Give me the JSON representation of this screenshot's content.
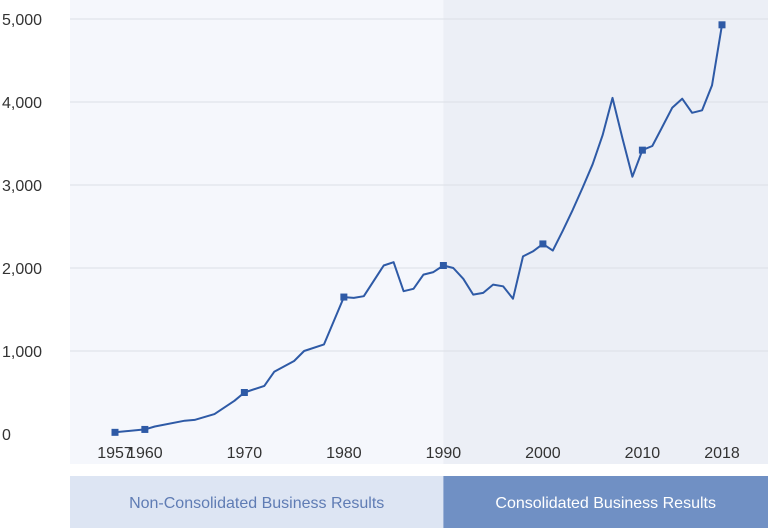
{
  "chart_data": {
    "type": "line",
    "title": "",
    "xlabel": "",
    "ylabel": "",
    "ylim": [
      0,
      5000
    ],
    "xlim": [
      1954,
      2021
    ],
    "grid": "horizontal",
    "yticks": [
      0,
      1000,
      2000,
      3000,
      4000,
      5000
    ],
    "ytick_labels": [
      "0",
      "1,000",
      "2,000",
      "3,000",
      "4,000",
      "5,000"
    ],
    "xticks": [
      1957,
      1960,
      1970,
      1980,
      1990,
      2000,
      2010,
      2018
    ],
    "xtick_labels": [
      "1957",
      "1960",
      "1970",
      "1980",
      "1990",
      "2000",
      "2010",
      "2018"
    ],
    "line_color": "#2e5aa6",
    "regions": [
      {
        "label": "Non-Consolidated Business Results",
        "x_range": [
          1954,
          1990
        ],
        "plot_color": "#f5f7fc",
        "band_color": "#dde5f3",
        "text_color": "#5f7cb4"
      },
      {
        "label": "Consolidated Business Results",
        "x_range": [
          1990,
          2021
        ],
        "plot_color": "#eceff6",
        "band_color": "#7090c4",
        "text_color": "#ffffff"
      }
    ],
    "series": [
      {
        "name": "",
        "x": [
          1957,
          1960,
          1961,
          1964,
          1965,
          1967,
          1969,
          1970,
          1972,
          1973,
          1975,
          1976,
          1978,
          1980,
          1981,
          1982,
          1984,
          1985,
          1986,
          1987,
          1988,
          1989,
          1990,
          1991,
          1992,
          1993,
          1994,
          1995,
          1996,
          1997,
          1998,
          1999,
          2000,
          2001,
          2002,
          2003,
          2004,
          2005,
          2006,
          2007,
          2008,
          2009,
          2010,
          2011,
          2012,
          2013,
          2014,
          2015,
          2016,
          2017,
          2018
        ],
        "y": [
          20,
          55,
          90,
          160,
          170,
          240,
          400,
          500,
          580,
          750,
          880,
          1000,
          1080,
          1650,
          1640,
          1660,
          2030,
          2070,
          1720,
          1750,
          1920,
          1950,
          2030,
          2000,
          1870,
          1680,
          1700,
          1800,
          1780,
          1630,
          2140,
          2200,
          2290,
          2210,
          2450,
          2700,
          2970,
          3250,
          3600,
          4050,
          3560,
          3100,
          3420,
          3470,
          3700,
          3930,
          4040,
          3870,
          3900,
          4200,
          4930
        ]
      }
    ],
    "markers_at": [
      1957,
      1960,
      1970,
      1980,
      1990,
      2000,
      2010,
      2018
    ]
  }
}
